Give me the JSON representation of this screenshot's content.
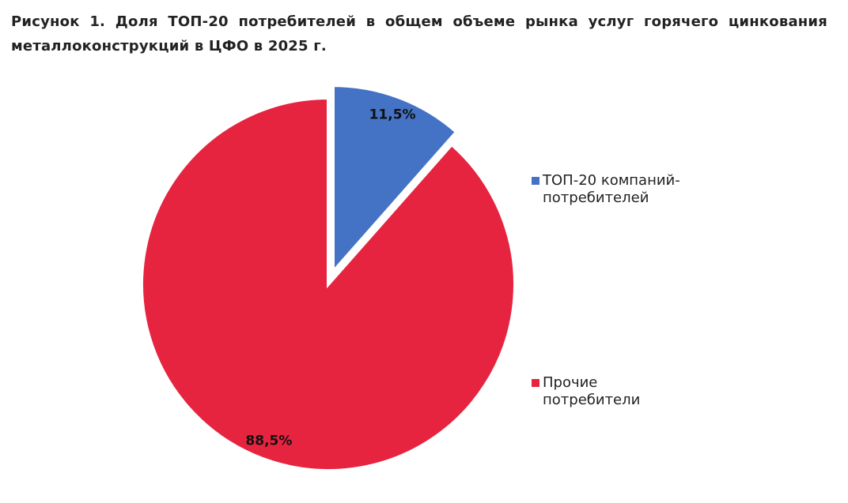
{
  "chart_data": {
    "type": "pie",
    "title": "Рисунок 1. Доля ТОП-20 потребителей в общем объеме рынка услуг горячего цинкования металлоконструкций в ЦФО в 2025 г.",
    "categories": [
      "ТОП-20 компаний-потребителей",
      "Прочие потребители"
    ],
    "values": [
      11.5,
      88.5
    ],
    "value_labels": [
      "11,5%",
      "88,5%"
    ],
    "colors": [
      "#4472c4",
      "#e6243f"
    ],
    "exploded": [
      true,
      false
    ],
    "legend": "right"
  }
}
